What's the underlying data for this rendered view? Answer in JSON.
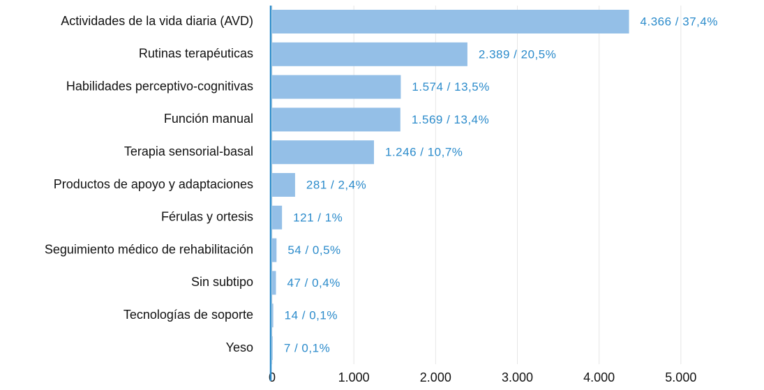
{
  "chart_data": {
    "type": "bar",
    "orientation": "horizontal",
    "categories": [
      "Actividades de la vida diaria (AVD)",
      "Rutinas terapéuticas",
      "Habilidades perceptivo-cognitivas",
      "Función manual",
      "Terapia sensorial-basal",
      "Productos de apoyo y adaptaciones",
      "Férulas y ortesis",
      "Seguimiento médico de rehabilitación",
      "Sin subtipo",
      "Tecnologías de soporte",
      "Yeso"
    ],
    "values": [
      4366,
      2389,
      1574,
      1569,
      1246,
      281,
      121,
      54,
      47,
      14,
      7
    ],
    "value_labels": [
      "4.366 / 37,4%",
      "2.389 / 20,5%",
      "1.574 / 13,5%",
      "1.569 / 13,4%",
      "1.246 / 10,7%",
      "281 / 2,4%",
      "121 / 1%",
      "54 / 0,5%",
      "47 / 0,4%",
      "14 / 0,1%",
      "7 / 0,1%"
    ],
    "color": "#94bfe7",
    "xlim": [
      0,
      6000
    ],
    "xticks": [
      0,
      {
        "value": 1000,
        "label": "1.000"
      },
      {
        "value": 2000,
        "label": "2.000"
      },
      {
        "value": 3000,
        "label": "3.000"
      },
      {
        "value": 4000,
        "label": "4.000"
      },
      {
        "value": 5000,
        "label": "5.000"
      }
    ],
    "grid": true
  }
}
